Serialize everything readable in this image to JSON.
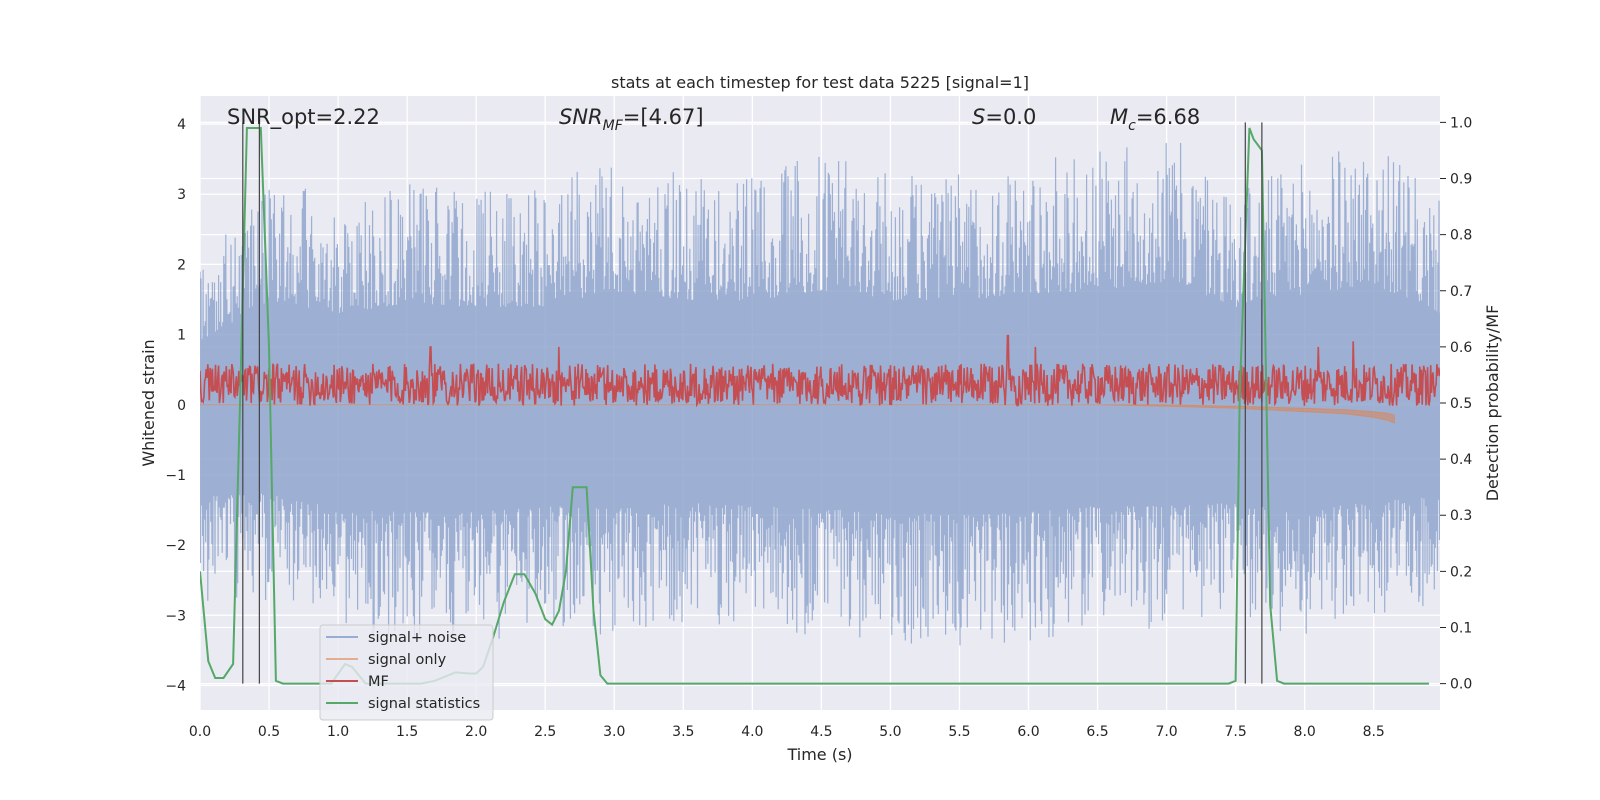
{
  "chart_data": {
    "type": "line",
    "title": "stats at each timestep for test data 5225 [signal=1]",
    "xlabel": "Time (s)",
    "ylabel": "Whitened strain",
    "y2label": "Detection probability/MF",
    "xlim": [
      0.0,
      8.98
    ],
    "ylim": [
      -4.35,
      4.4
    ],
    "y2lim": [
      -0.047,
      1.047
    ],
    "xticks": [
      0.0,
      0.5,
      1.0,
      1.5,
      2.0,
      2.5,
      3.0,
      3.5,
      4.0,
      4.5,
      5.0,
      5.5,
      6.0,
      6.5,
      7.0,
      7.5,
      8.0,
      8.5
    ],
    "xtick_labels": [
      "0.0",
      "0.5",
      "1.0",
      "1.5",
      "2.0",
      "2.5",
      "3.0",
      "3.5",
      "4.0",
      "4.5",
      "5.0",
      "5.5",
      "6.0",
      "6.5",
      "7.0",
      "7.5",
      "8.0",
      "8.5"
    ],
    "yticks": [
      -4,
      -3,
      -2,
      -1,
      0,
      1,
      2,
      3,
      4
    ],
    "ytick_labels": [
      "−4",
      "−3",
      "−2",
      "−1",
      "0",
      "1",
      "2",
      "3",
      "4"
    ],
    "y2ticks": [
      0.0,
      0.1,
      0.2,
      0.3,
      0.4,
      0.5,
      0.6,
      0.7,
      0.8,
      0.9,
      1.0
    ],
    "y2tick_labels": [
      "0.0",
      "0.1",
      "0.2",
      "0.3",
      "0.4",
      "0.5",
      "0.6",
      "0.7",
      "0.8",
      "0.9",
      "1.0"
    ],
    "grid": true,
    "legend_position": "lower-left",
    "annotations": {
      "snr_opt": "SNR_opt=2.22",
      "snr_mf_base": "SNR",
      "snr_mf_sub": "MF",
      "snr_mf_value": "=[4.67]",
      "s_label": "S",
      "s_value": "=0.0",
      "mc_base": "M",
      "mc_sub": "c",
      "mc_value": "=6.68"
    },
    "vlines_x": [
      0.31,
      0.43,
      7.57,
      7.69
    ],
    "series": [
      {
        "name": "signal+ noise",
        "color": "#8fa6ce",
        "axis": "left",
        "envelope_x": [
          0.0,
          0.5,
          1.0,
          1.5,
          2.0,
          2.5,
          3.0,
          3.5,
          4.0,
          4.5,
          5.0,
          5.5,
          6.0,
          6.5,
          7.0,
          7.5,
          8.0,
          8.5,
          8.98
        ],
        "envelope_upper": [
          2.0,
          3.3,
          2.9,
          3.2,
          3.1,
          3.1,
          3.6,
          3.3,
          3.3,
          3.6,
          3.3,
          3.3,
          3.5,
          3.6,
          3.9,
          3.1,
          3.5,
          3.8,
          2.9
        ],
        "envelope_lower": [
          -2.9,
          -2.8,
          -3.3,
          -3.4,
          -3.4,
          -3.2,
          -3.3,
          -3.1,
          -3.2,
          -3.3,
          -3.4,
          -3.5,
          -3.4,
          -3.2,
          -3.2,
          -3.1,
          -3.3,
          -3.0,
          -2.9
        ]
      },
      {
        "name": "signal only",
        "color": "#dd8452",
        "axis": "left",
        "x": [
          0.0,
          6.5,
          7.0,
          7.5,
          8.0,
          8.3,
          8.5,
          8.6,
          8.65
        ],
        "upper": [
          0.0,
          0.0,
          0.0,
          -0.02,
          -0.05,
          -0.07,
          -0.1,
          -0.12,
          -0.15
        ],
        "lower": [
          0.0,
          0.0,
          -0.02,
          -0.05,
          -0.1,
          -0.13,
          -0.18,
          -0.22,
          -0.26
        ]
      },
      {
        "name": "MF",
        "color": "#c44e52",
        "axis": "right",
        "baseline": 0.53,
        "range": [
          0.495,
          0.57
        ],
        "peaks_x": [
          1.67,
          2.6,
          5.85,
          6.05,
          8.1,
          8.35
        ],
        "peaks_y": [
          0.6,
          0.6,
          0.62,
          0.6,
          0.6,
          0.61
        ]
      },
      {
        "name": "signal statistics",
        "color": "#55a868",
        "axis": "right",
        "x": [
          0.0,
          0.06,
          0.11,
          0.17,
          0.24,
          0.29,
          0.34,
          0.39,
          0.44,
          0.5,
          0.55,
          0.6,
          0.65,
          0.75,
          0.85,
          0.95,
          1.05,
          1.1,
          1.2,
          1.3,
          1.5,
          1.6,
          1.7,
          1.85,
          1.95,
          2.0,
          2.05,
          2.12,
          2.2,
          2.28,
          2.35,
          2.43,
          2.5,
          2.55,
          2.6,
          2.65,
          2.7,
          2.75,
          2.8,
          2.85,
          2.9,
          2.95,
          3.0,
          3.5,
          4.0,
          5.0,
          6.0,
          7.0,
          7.45,
          7.5,
          7.53,
          7.57,
          7.6,
          7.63,
          7.69,
          7.75,
          7.8,
          7.85,
          7.95,
          8.5,
          8.9
        ],
        "y": [
          0.2,
          0.04,
          0.01,
          0.01,
          0.035,
          0.5,
          0.99,
          0.99,
          0.99,
          0.6,
          0.005,
          0.0,
          0.0,
          0.0,
          0.0,
          0.0,
          0.035,
          0.03,
          0.0,
          0.0,
          0.0,
          0.0,
          0.005,
          0.02,
          0.018,
          0.018,
          0.03,
          0.08,
          0.145,
          0.195,
          0.195,
          0.16,
          0.115,
          0.105,
          0.13,
          0.2,
          0.35,
          0.35,
          0.35,
          0.13,
          0.015,
          0.0,
          0.0,
          0.0,
          0.0,
          0.0,
          0.0,
          0.0,
          0.0,
          0.005,
          0.52,
          0.79,
          0.99,
          0.97,
          0.95,
          0.14,
          0.005,
          0.0,
          0.0,
          0.0,
          0.0
        ]
      }
    ]
  }
}
